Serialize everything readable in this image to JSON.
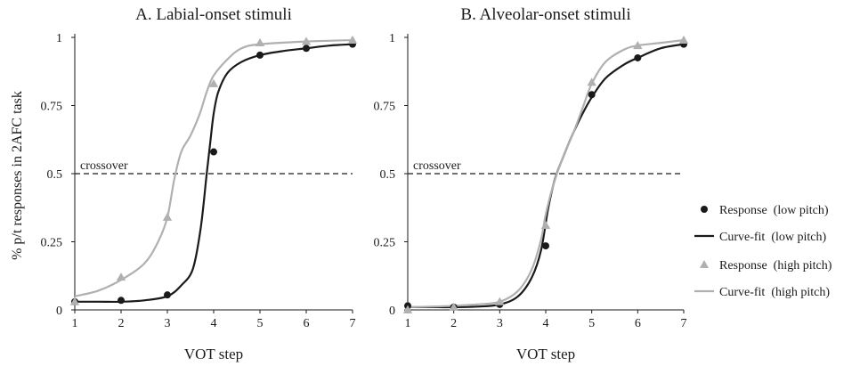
{
  "chart_data": [
    {
      "type": "line",
      "title": "A. Labial-onset stimuli",
      "xlabel": "VOT step",
      "ylabel": "% p/t responses in 2AFC task",
      "x": [
        1,
        2,
        3,
        4,
        5,
        6,
        7
      ],
      "x_ticks": [
        "1",
        "2",
        "3",
        "4",
        "5",
        "6",
        "7"
      ],
      "y_ticks": [
        "0",
        "0.25",
        "0.5",
        "0.75",
        "1"
      ],
      "xlim": [
        1,
        7
      ],
      "ylim": [
        0,
        1
      ],
      "crossover": {
        "y": 0.5,
        "label": "crossover"
      },
      "series": [
        {
          "name": "Response (low pitch)",
          "kind": "points",
          "marker": "circle",
          "color": "#1a1a1a",
          "values": [
            0.03,
            0.035,
            0.055,
            0.58,
            0.935,
            0.96,
            0.975
          ]
        },
        {
          "name": "Curve-fit (low pitch)",
          "kind": "curve",
          "color": "#1a1a1a",
          "points": [
            [
              1,
              0.03
            ],
            [
              1.5,
              0.03
            ],
            [
              2,
              0.03
            ],
            [
              2.5,
              0.035
            ],
            [
              3,
              0.05
            ],
            [
              3.3,
              0.09
            ],
            [
              3.55,
              0.15
            ],
            [
              3.72,
              0.3
            ],
            [
              3.85,
              0.5
            ],
            [
              3.93,
              0.62
            ],
            [
              4,
              0.72
            ],
            [
              4.1,
              0.8
            ],
            [
              4.3,
              0.87
            ],
            [
              4.6,
              0.91
            ],
            [
              5,
              0.935
            ],
            [
              5.5,
              0.95
            ],
            [
              6,
              0.96
            ],
            [
              6.5,
              0.97
            ],
            [
              7,
              0.975
            ]
          ]
        },
        {
          "name": "Response (high pitch)",
          "kind": "points",
          "marker": "triangle",
          "color": "#b0b0b0",
          "values": [
            0.03,
            0.12,
            0.34,
            0.83,
            0.98,
            0.985,
            0.99
          ]
        },
        {
          "name": "Curve-fit (high pitch)",
          "kind": "curve",
          "color": "#b0b0b0",
          "points": [
            [
              1,
              0.05
            ],
            [
              1.5,
              0.07
            ],
            [
              2,
              0.11
            ],
            [
              2.5,
              0.17
            ],
            [
              2.8,
              0.25
            ],
            [
              3,
              0.34
            ],
            [
              3.15,
              0.48
            ],
            [
              3.3,
              0.58
            ],
            [
              3.5,
              0.64
            ],
            [
              3.7,
              0.72
            ],
            [
              3.85,
              0.8
            ],
            [
              4,
              0.86
            ],
            [
              4.3,
              0.92
            ],
            [
              4.6,
              0.96
            ],
            [
              5,
              0.975
            ],
            [
              6,
              0.985
            ],
            [
              7,
              0.99
            ]
          ]
        }
      ]
    },
    {
      "type": "line",
      "title": "B. Alveolar-onset stimuli",
      "xlabel": "VOT step",
      "ylabel": "",
      "x": [
        1,
        2,
        3,
        4,
        5,
        6,
        7
      ],
      "x_ticks": [
        "1",
        "2",
        "3",
        "4",
        "5",
        "6",
        "7"
      ],
      "y_ticks": [
        "0",
        "0.25",
        "0.5",
        "0.75",
        "1"
      ],
      "xlim": [
        1,
        7
      ],
      "ylim": [
        0,
        1
      ],
      "crossover": {
        "y": 0.5,
        "label": "crossover"
      },
      "series": [
        {
          "name": "Response (low pitch)",
          "kind": "points",
          "marker": "circle",
          "color": "#1a1a1a",
          "values": [
            0.015,
            0.01,
            0.02,
            0.235,
            0.79,
            0.925,
            0.975
          ]
        },
        {
          "name": "Curve-fit (low pitch)",
          "kind": "curve",
          "color": "#1a1a1a",
          "points": [
            [
              1,
              0.01
            ],
            [
              1.5,
              0.01
            ],
            [
              2,
              0.01
            ],
            [
              2.5,
              0.012
            ],
            [
              3,
              0.02
            ],
            [
              3.4,
              0.05
            ],
            [
              3.7,
              0.12
            ],
            [
              3.9,
              0.22
            ],
            [
              4.05,
              0.37
            ],
            [
              4.2,
              0.48
            ],
            [
              4.4,
              0.57
            ],
            [
              4.6,
              0.65
            ],
            [
              4.8,
              0.72
            ],
            [
              5,
              0.78
            ],
            [
              5.3,
              0.85
            ],
            [
              5.7,
              0.9
            ],
            [
              6,
              0.925
            ],
            [
              6.5,
              0.96
            ],
            [
              7,
              0.975
            ]
          ]
        },
        {
          "name": "Response (high pitch)",
          "kind": "points",
          "marker": "triangle",
          "color": "#b0b0b0",
          "values": [
            0.0,
            0.01,
            0.03,
            0.31,
            0.835,
            0.97,
            0.99
          ]
        },
        {
          "name": "Curve-fit (high pitch)",
          "kind": "curve",
          "color": "#b0b0b0",
          "points": [
            [
              1,
              0.01
            ],
            [
              1.5,
              0.012
            ],
            [
              2,
              0.015
            ],
            [
              2.5,
              0.02
            ],
            [
              3,
              0.03
            ],
            [
              3.4,
              0.07
            ],
            [
              3.7,
              0.15
            ],
            [
              3.9,
              0.26
            ],
            [
              4,
              0.35
            ],
            [
              4.15,
              0.45
            ],
            [
              4.35,
              0.55
            ],
            [
              4.6,
              0.65
            ],
            [
              4.8,
              0.74
            ],
            [
              5,
              0.83
            ],
            [
              5.3,
              0.91
            ],
            [
              5.7,
              0.955
            ],
            [
              6,
              0.97
            ],
            [
              6.5,
              0.98
            ],
            [
              7,
              0.99
            ]
          ]
        }
      ]
    }
  ],
  "legend": {
    "placement": "right",
    "items": [
      {
        "label": "Response  (low pitch)",
        "marker": "circle",
        "color": "#1a1a1a"
      },
      {
        "label": "Curve-fit  (low pitch)",
        "marker": "line",
        "color": "#1a1a1a"
      },
      {
        "label": "Response  (high pitch)",
        "marker": "triangle",
        "color": "#b0b0b0"
      },
      {
        "label": "Curve-fit  (high pitch)",
        "marker": "line",
        "color": "#b0b0b0"
      }
    ]
  }
}
